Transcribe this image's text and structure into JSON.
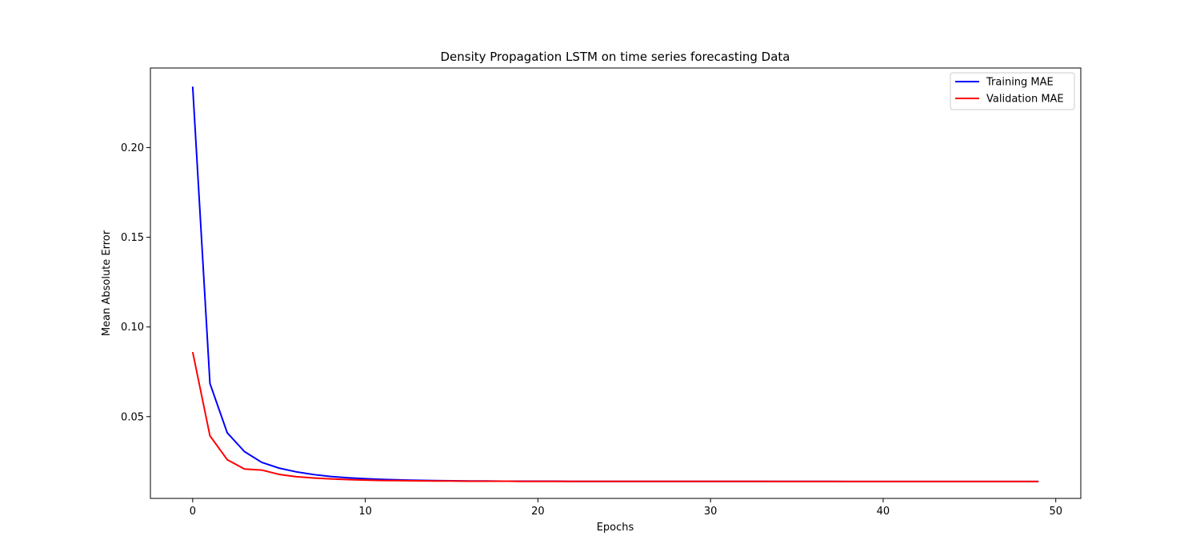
{
  "chart_data": {
    "type": "line",
    "title": "Density Propagation LSTM on time series forecasting Data",
    "xlabel": "Epochs",
    "ylabel": "Mean Absolute Error",
    "xlim": [
      -2.45,
      51.45
    ],
    "ylim": [
      0.0044,
      0.2444
    ],
    "xticks": [
      0,
      10,
      20,
      30,
      40,
      50
    ],
    "yticks": [
      0.05,
      0.1,
      0.15,
      0.2
    ],
    "xtick_labels": [
      "0",
      "10",
      "20",
      "30",
      "40",
      "50"
    ],
    "ytick_labels": [
      "0.05",
      "0.10",
      "0.15",
      "0.20"
    ],
    "grid": false,
    "legend_position": "top-right",
    "x": [
      0,
      1,
      2,
      3,
      4,
      5,
      6,
      7,
      8,
      9,
      10,
      11,
      12,
      13,
      14,
      15,
      16,
      17,
      18,
      19,
      20,
      21,
      22,
      23,
      24,
      25,
      26,
      27,
      28,
      29,
      30,
      31,
      32,
      33,
      34,
      35,
      36,
      37,
      38,
      39,
      40,
      41,
      42,
      43,
      44,
      45,
      46,
      47,
      48,
      49
    ],
    "series": [
      {
        "name": "Training MAE",
        "color": "#0000ff",
        "values": [
          0.234,
          0.0685,
          0.041,
          0.0305,
          0.0245,
          0.0213,
          0.0192,
          0.0177,
          0.0166,
          0.0159,
          0.0154,
          0.015,
          0.0147,
          0.0145,
          0.0143,
          0.0142,
          0.0141,
          0.0141,
          0.014,
          0.014,
          0.014,
          0.014,
          0.0139,
          0.0139,
          0.0139,
          0.0139,
          0.0139,
          0.0139,
          0.0139,
          0.0139,
          0.0139,
          0.0139,
          0.0139,
          0.0139,
          0.0139,
          0.0139,
          0.0139,
          0.0139,
          0.0138,
          0.0138,
          0.0138,
          0.0138,
          0.0138,
          0.0138,
          0.0138,
          0.0138,
          0.0138,
          0.0138,
          0.0138,
          0.0138
        ]
      },
      {
        "name": "Validation MAE",
        "color": "#ff0000",
        "values": [
          0.086,
          0.0393,
          0.026,
          0.0208,
          0.0202,
          0.0178,
          0.0165,
          0.0158,
          0.0153,
          0.0149,
          0.0146,
          0.0144,
          0.0143,
          0.0142,
          0.0141,
          0.0141,
          0.014,
          0.014,
          0.014,
          0.0139,
          0.0139,
          0.0139,
          0.0139,
          0.0139,
          0.0139,
          0.0139,
          0.0139,
          0.0139,
          0.0139,
          0.0139,
          0.0139,
          0.0139,
          0.0139,
          0.0139,
          0.0138,
          0.0138,
          0.0138,
          0.0138,
          0.0138,
          0.0138,
          0.0138,
          0.0138,
          0.0138,
          0.0138,
          0.0138,
          0.0138,
          0.0138,
          0.0138,
          0.0138,
          0.0138
        ]
      }
    ]
  }
}
